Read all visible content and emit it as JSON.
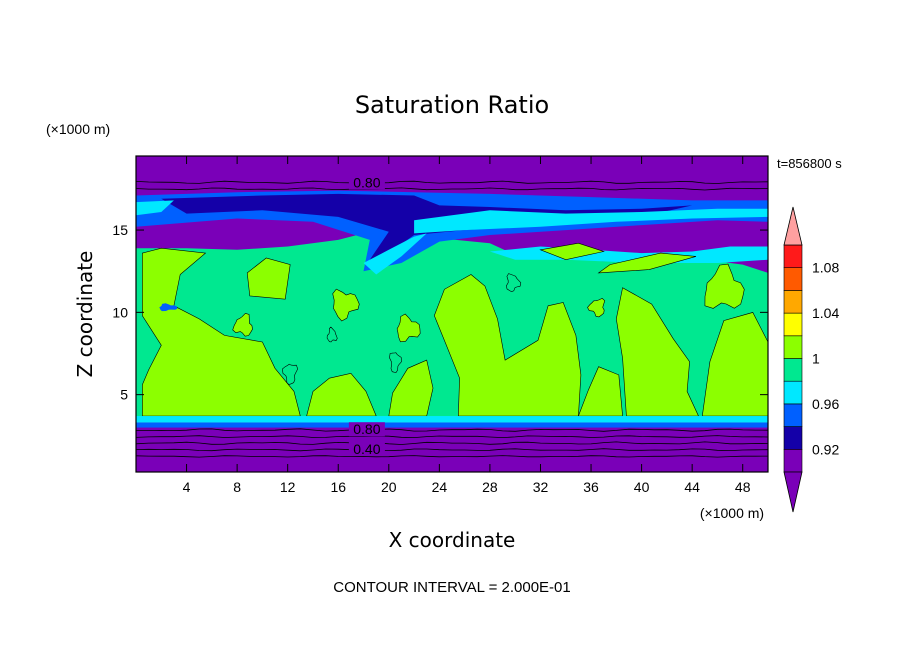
{
  "chart_data": {
    "type": "heatmap",
    "title": "Saturation Ratio",
    "xlabel": "X coordinate",
    "ylabel": "Z coordinate",
    "x_unit": "(×1000 m)",
    "y_unit": "(×1000 m)",
    "time_label": "t=856800 s",
    "contour_interval_label": "CONTOUR INTERVAL = 2.000E-01",
    "xlim": [
      0,
      50
    ],
    "ylim": [
      0.3,
      19.5
    ],
    "x_ticks": [
      4,
      8,
      12,
      16,
      20,
      24,
      28,
      32,
      36,
      40,
      44,
      48
    ],
    "y_ticks": [
      5,
      10,
      15
    ],
    "contour_labels": [
      {
        "text": "0.80",
        "x": 17,
        "y": 17.9
      },
      {
        "text": "0.80",
        "x": 17,
        "y": 2.9
      },
      {
        "text": "0.40",
        "x": 17,
        "y": 1.7
      }
    ],
    "colorbar": {
      "levels": [
        0.9,
        0.92,
        0.94,
        0.96,
        0.98,
        1.0,
        1.02,
        1.04,
        1.06,
        1.08,
        1.1
      ],
      "tick_labels": [
        "0.92",
        "0.96",
        "1",
        "1.04",
        "1.08"
      ],
      "tick_values": [
        0.92,
        0.96,
        1.0,
        1.04,
        1.08
      ],
      "colors": [
        "#7a00b8",
        "#1400a8",
        "#0060ff",
        "#00e8ff",
        "#00e890",
        "#8cff00",
        "#ffff00",
        "#ffa800",
        "#ff5a00",
        "#ff1a1a"
      ],
      "under_color": "#7a00b8",
      "over_color": "#ffa0a0"
    },
    "regions": {
      "background": "#7a00b8",
      "mid_layer": "#00e890",
      "saturated_patches": "#8cff00",
      "cirrus_dark": "#1400a8",
      "cirrus_blue": "#0060ff",
      "cirrus_cyan": "#00e8ff"
    }
  }
}
